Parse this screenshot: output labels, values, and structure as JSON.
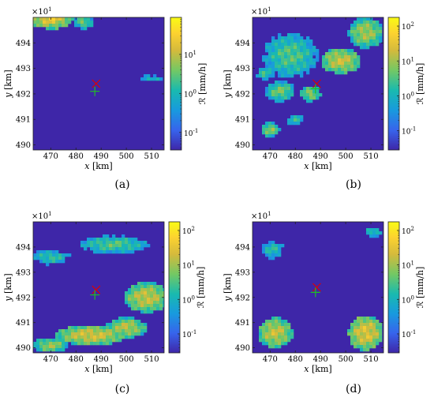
{
  "chart_data": [
    {
      "type": "heatmap",
      "panel_label": "(a)",
      "exponent_label": "×10",
      "exponent_power": "1",
      "xlabel_var": "x",
      "xlabel_unit": "[km]",
      "ylabel_var": "y",
      "ylabel_unit": "[km]",
      "x_ticks": [
        "470",
        "480",
        "490",
        "500",
        "510"
      ],
      "y_ticks": [
        "490",
        "491",
        "492",
        "493",
        "494"
      ],
      "xlim": [
        463,
        515
      ],
      "ylim": [
        4898,
        4950
      ],
      "colorbar_label": "ℛ [mm/h]",
      "colorbar_ticks": [
        {
          "label": "10",
          "sup": "-1"
        },
        {
          "label": "10",
          "sup": "0"
        },
        {
          "label": "10",
          "sup": "1"
        }
      ],
      "colorbar_range_log10": [
        -1.45,
        1.95
      ],
      "markers": [
        {
          "symbol": "x",
          "color": "#e00000",
          "x": 488,
          "y": 4924
        },
        {
          "symbol": "+",
          "color": "#20c020",
          "x": 487.5,
          "y": 4921
        }
      ],
      "rain_blobs": [
        {
          "x": 470,
          "y": 4950,
          "rx": 9,
          "ry": 4.5,
          "peak": 1.3
        },
        {
          "x": 483,
          "y": 4948,
          "rx": 4,
          "ry": 2.5,
          "peak": 0.6
        },
        {
          "x": 510,
          "y": 4926,
          "rx": 5,
          "ry": 1.5,
          "peak": 0.1
        }
      ]
    },
    {
      "type": "heatmap",
      "panel_label": "(b)",
      "exponent_label": "×10",
      "exponent_power": "1",
      "xlabel_var": "x",
      "xlabel_unit": "[km]",
      "ylabel_var": "y",
      "ylabel_unit": "[km]",
      "x_ticks": [
        "470",
        "480",
        "490",
        "500",
        "510"
      ],
      "y_ticks": [
        "490",
        "491",
        "492",
        "493",
        "494"
      ],
      "xlim": [
        463,
        515
      ],
      "ylim": [
        4898,
        4950
      ],
      "colorbar_label": "ℛ [mm/h]",
      "colorbar_ticks": [
        {
          "label": "10",
          "sup": "-1"
        },
        {
          "label": "10",
          "sup": "0"
        },
        {
          "label": "10",
          "sup": "1"
        },
        {
          "label": "10",
          "sup": "2"
        }
      ],
      "colorbar_range_log10": [
        -1.55,
        2.25
      ],
      "markers": [
        {
          "symbol": "x",
          "color": "#e00000",
          "x": 488.5,
          "y": 4924
        },
        {
          "symbol": "+",
          "color": "#20c020",
          "x": 488,
          "y": 4922
        }
      ],
      "rain_blobs": [
        {
          "x": 478,
          "y": 4935,
          "rx": 11,
          "ry": 9,
          "peak": 0.5
        },
        {
          "x": 498,
          "y": 4933,
          "rx": 8,
          "ry": 5,
          "peak": 1.2
        },
        {
          "x": 508,
          "y": 4944,
          "rx": 7,
          "ry": 6,
          "peak": 1.0
        },
        {
          "x": 474,
          "y": 4921,
          "rx": 6,
          "ry": 4,
          "peak": 0.7
        },
        {
          "x": 486,
          "y": 4920,
          "rx": 4,
          "ry": 3,
          "peak": 0.9
        },
        {
          "x": 470,
          "y": 4906,
          "rx": 4,
          "ry": 3,
          "peak": 0.8
        },
        {
          "x": 480,
          "y": 4910,
          "rx": 4,
          "ry": 2.5,
          "peak": 0.2
        },
        {
          "x": 468,
          "y": 4928,
          "rx": 4,
          "ry": 3,
          "peak": 0.3
        }
      ]
    },
    {
      "type": "heatmap",
      "panel_label": "(c)",
      "exponent_label": "×10",
      "exponent_power": "1",
      "xlabel_var": "x",
      "xlabel_unit": "[km]",
      "ylabel_var": "y",
      "ylabel_unit": "[km]",
      "x_ticks": [
        "470",
        "480",
        "490",
        "500",
        "510"
      ],
      "y_ticks": [
        "490",
        "491",
        "492",
        "493",
        "494"
      ],
      "xlim": [
        463,
        515
      ],
      "ylim": [
        4898,
        4950
      ],
      "colorbar_label": "ℛ [mm/h]",
      "colorbar_ticks": [
        {
          "label": "10",
          "sup": "-1"
        },
        {
          "label": "10",
          "sup": "0"
        },
        {
          "label": "10",
          "sup": "1"
        },
        {
          "label": "10",
          "sup": "2"
        }
      ],
      "colorbar_range_log10": [
        -1.55,
        2.25
      ],
      "markers": [
        {
          "symbol": "x",
          "color": "#e00000",
          "x": 488,
          "y": 4923
        },
        {
          "symbol": "+",
          "color": "#20c020",
          "x": 487.5,
          "y": 4921
        }
      ],
      "rain_blobs": [
        {
          "x": 495,
          "y": 4941,
          "rx": 14,
          "ry": 3.5,
          "peak": 0.5
        },
        {
          "x": 470,
          "y": 4936,
          "rx": 8,
          "ry": 3,
          "peak": 0.3
        },
        {
          "x": 508,
          "y": 4920,
          "rx": 9,
          "ry": 6,
          "peak": 1.2
        },
        {
          "x": 486,
          "y": 4905,
          "rx": 14,
          "ry": 4,
          "peak": 1.3
        },
        {
          "x": 470,
          "y": 4901,
          "rx": 7,
          "ry": 3,
          "peak": 0.9
        },
        {
          "x": 500,
          "y": 4908,
          "rx": 8,
          "ry": 4,
          "peak": 1.1
        }
      ]
    },
    {
      "type": "heatmap",
      "panel_label": "(d)",
      "exponent_label": "×10",
      "exponent_power": "1",
      "xlabel_var": "x",
      "xlabel_unit": "[km]",
      "ylabel_var": "y",
      "ylabel_unit": "[km]",
      "x_ticks": [
        "470",
        "480",
        "490",
        "500",
        "510"
      ],
      "y_ticks": [
        "490",
        "491",
        "492",
        "493",
        "494"
      ],
      "xlim": [
        463,
        515
      ],
      "ylim": [
        4898,
        4950
      ],
      "colorbar_label": "ℛ [mm/h]",
      "colorbar_ticks": [
        {
          "label": "10",
          "sup": "-1"
        },
        {
          "label": "10",
          "sup": "0"
        },
        {
          "label": "10",
          "sup": "1"
        },
        {
          "label": "10",
          "sup": "2"
        }
      ],
      "colorbar_range_log10": [
        -1.55,
        2.25
      ],
      "markers": [
        {
          "symbol": "x",
          "color": "#e00000",
          "x": 488.5,
          "y": 4924
        },
        {
          "symbol": "+",
          "color": "#20c020",
          "x": 488,
          "y": 4922
        }
      ],
      "rain_blobs": [
        {
          "x": 471,
          "y": 4939,
          "rx": 5,
          "ry": 4,
          "peak": 0.2
        },
        {
          "x": 472,
          "y": 4906,
          "rx": 7,
          "ry": 6,
          "peak": 1.2
        },
        {
          "x": 508,
          "y": 4906,
          "rx": 7,
          "ry": 7,
          "peak": 1.4
        },
        {
          "x": 511,
          "y": 4946,
          "rx": 4,
          "ry": 2,
          "peak": 0.3
        }
      ]
    }
  ]
}
